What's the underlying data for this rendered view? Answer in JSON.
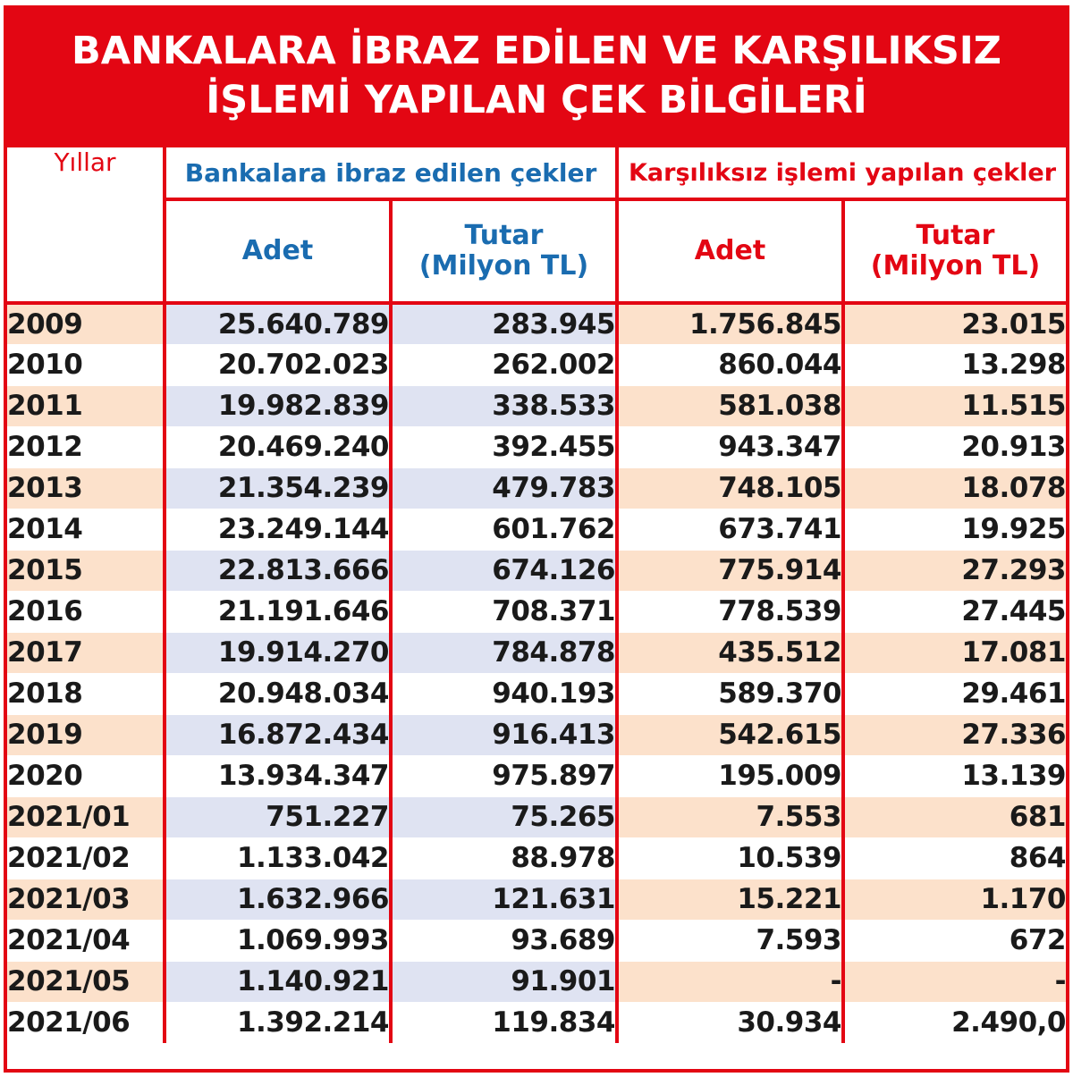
{
  "title": {
    "line1": "BANKALARA İBRAZ EDİLEN VE KARŞILIKSIZ",
    "line2": "İŞLEMİ YAPILAN ÇEK BİLGİLERİ"
  },
  "header": {
    "years_label": "Yıllar",
    "group_presented": "Bankalara ibraz edilen çekler",
    "group_bounced": "Karşılıksız işlemi yapılan çekler",
    "col_count": "Adet",
    "col_amount_line1": "Tutar",
    "col_amount_line2": "(Milyon TL)"
  },
  "colors": {
    "brand_red": "#e30613",
    "header_blue": "#1a6cb0",
    "row_peach": "#fce1cb",
    "row_lavender": "#dfe3f2"
  },
  "rows": [
    {
      "year": "2009",
      "presented_count": "25.640.789",
      "presented_amount": "283.945",
      "bounced_count": "1.756.845",
      "bounced_amount": "23.015"
    },
    {
      "year": "2010",
      "presented_count": "20.702.023",
      "presented_amount": "262.002",
      "bounced_count": "860.044",
      "bounced_amount": "13.298"
    },
    {
      "year": "2011",
      "presented_count": "19.982.839",
      "presented_amount": "338.533",
      "bounced_count": "581.038",
      "bounced_amount": "11.515"
    },
    {
      "year": "2012",
      "presented_count": "20.469.240",
      "presented_amount": "392.455",
      "bounced_count": "943.347",
      "bounced_amount": "20.913"
    },
    {
      "year": "2013",
      "presented_count": "21.354.239",
      "presented_amount": "479.783",
      "bounced_count": "748.105",
      "bounced_amount": "18.078"
    },
    {
      "year": "2014",
      "presented_count": "23.249.144",
      "presented_amount": "601.762",
      "bounced_count": "673.741",
      "bounced_amount": "19.925"
    },
    {
      "year": "2015",
      "presented_count": "22.813.666",
      "presented_amount": "674.126",
      "bounced_count": "775.914",
      "bounced_amount": "27.293"
    },
    {
      "year": "2016",
      "presented_count": "21.191.646",
      "presented_amount": "708.371",
      "bounced_count": "778.539",
      "bounced_amount": "27.445"
    },
    {
      "year": "2017",
      "presented_count": "19.914.270",
      "presented_amount": "784.878",
      "bounced_count": "435.512",
      "bounced_amount": "17.081"
    },
    {
      "year": "2018",
      "presented_count": "20.948.034",
      "presented_amount": "940.193",
      "bounced_count": "589.370",
      "bounced_amount": "29.461"
    },
    {
      "year": "2019",
      "presented_count": "16.872.434",
      "presented_amount": "916.413",
      "bounced_count": "542.615",
      "bounced_amount": "27.336"
    },
    {
      "year": "2020",
      "presented_count": "13.934.347",
      "presented_amount": "975.897",
      "bounced_count": "195.009",
      "bounced_amount": "13.139"
    },
    {
      "year": "2021/01",
      "presented_count": "751.227",
      "presented_amount": "75.265",
      "bounced_count": "7.553",
      "bounced_amount": "681"
    },
    {
      "year": "2021/02",
      "presented_count": "1.133.042",
      "presented_amount": "88.978",
      "bounced_count": "10.539",
      "bounced_amount": "864"
    },
    {
      "year": "2021/03",
      "presented_count": "1.632.966",
      "presented_amount": "121.631",
      "bounced_count": "15.221",
      "bounced_amount": "1.170"
    },
    {
      "year": "2021/04",
      "presented_count": "1.069.993",
      "presented_amount": "93.689",
      "bounced_count": "7.593",
      "bounced_amount": "672"
    },
    {
      "year": "2021/05",
      "presented_count": "1.140.921",
      "presented_amount": "91.901",
      "bounced_count": "-",
      "bounced_amount": "-"
    },
    {
      "year": "2021/06",
      "presented_count": "1.392.214",
      "presented_amount": "119.834",
      "bounced_count": "30.934",
      "bounced_amount": "2.490,0"
    }
  ]
}
